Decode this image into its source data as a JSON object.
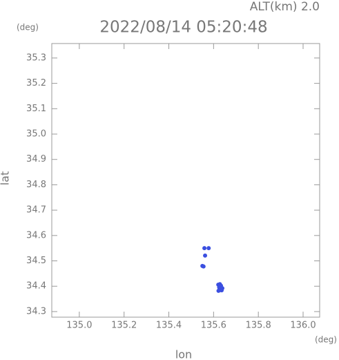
{
  "chart_data": {
    "type": "scatter",
    "title": "2022/08/14 05:20:48",
    "annotation": "ALT(km) 2.0",
    "y_unit": "(deg)",
    "x_unit": "(deg)",
    "xlabel": "lon",
    "ylabel": "lat",
    "color": "#3b4fe0",
    "x": [
      135.55,
      135.555,
      135.559,
      135.578,
      135.562,
      135.621,
      135.628,
      135.633,
      135.625,
      135.639,
      135.63,
      135.622,
      135.636
    ],
    "values": [
      34.48,
      34.478,
      34.55,
      34.55,
      34.521,
      34.406,
      34.408,
      34.402,
      34.395,
      34.392,
      34.385,
      34.382,
      34.384
    ],
    "xlim": [
      134.877,
      136.074
    ],
    "ylim": [
      34.278,
      35.357
    ],
    "xticks": [
      {
        "value": 135.0,
        "label": "135.0"
      },
      135.2,
      135.4,
      135.6,
      135.8,
      {
        "value": 136.0,
        "label": "136.0"
      }
    ],
    "yticks": [
      34.3,
      34.4,
      34.5,
      34.6,
      34.7,
      34.8,
      34.9,
      {
        "value": 35.0,
        "label": "35.0"
      },
      35.1,
      35.2,
      35.3
    ]
  }
}
